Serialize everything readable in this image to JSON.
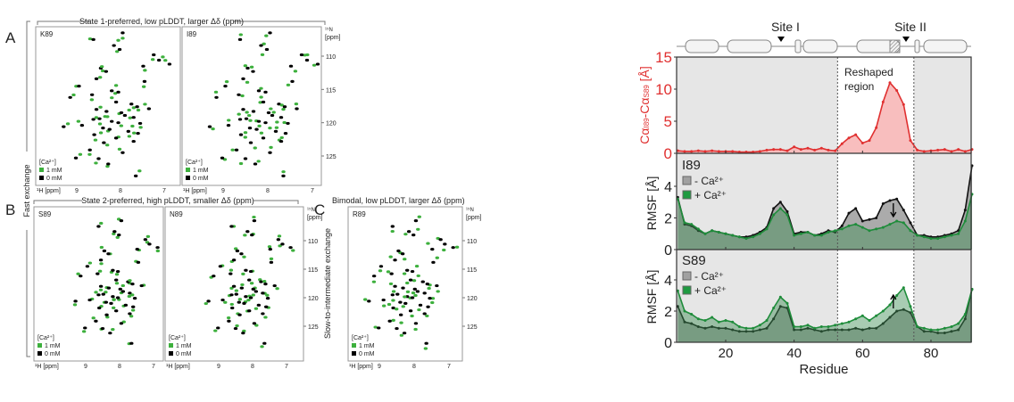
{
  "panel_labels": {
    "a": "A",
    "b": "B",
    "c": "C"
  },
  "group_titles": {
    "a": "State 1-preferred, low pLDDT, larger Δδ (ppm)",
    "b": "State 2-preferred, high pLDDT, smaller Δδ (ppm)",
    "c": "Bimodal, low pLDDT, larger Δδ (ppm)"
  },
  "side_labels": {
    "fast": "Fast exchange",
    "slow": "Slow-to-intermediate exchange"
  },
  "nmr": {
    "x_label": "¹H [ppm]",
    "y_label_top": "¹⁵N",
    "y_label_unit": "[ppm]",
    "legend_title": "[Ca²⁺]",
    "legend_1mM": "1 mM",
    "legend_0mM": "0 mM",
    "x_ticks": [
      "9",
      "8",
      "7"
    ],
    "y_ticks": [
      "110",
      "115",
      "120",
      "125"
    ],
    "colors": {
      "ca_1mM": "#3db03d",
      "ca_0mM": "#000000"
    },
    "spectra": [
      {
        "label": "K89",
        "ca_shift_scale": 1.0
      },
      {
        "label": "I89",
        "ca_shift_scale": 1.0
      },
      {
        "label": "S89",
        "ca_shift_scale": 0.8
      },
      {
        "label": "N89",
        "ca_shift_scale": 0.8
      },
      {
        "label": "R89",
        "ca_shift_scale": 1.3
      }
    ],
    "peaks_0mM": [
      [
        7.95,
        106.5
      ],
      [
        8.62,
        107.5
      ],
      [
        8.15,
        108.4
      ],
      [
        8.02,
        109.0
      ],
      [
        7.24,
        109.8
      ],
      [
        7.12,
        110.6
      ],
      [
        6.88,
        111.2
      ],
      [
        7.48,
        111.5
      ],
      [
        8.45,
        111.8
      ],
      [
        8.33,
        112.3
      ],
      [
        8.55,
        113.4
      ],
      [
        7.45,
        113.8
      ],
      [
        8.95,
        114.5
      ],
      [
        8.2,
        115.2
      ],
      [
        8.05,
        115.4
      ],
      [
        8.65,
        115.8
      ],
      [
        9.15,
        116.2
      ],
      [
        8.1,
        116.9
      ],
      [
        7.75,
        117.2
      ],
      [
        7.62,
        117.6
      ],
      [
        7.35,
        117.9
      ],
      [
        8.55,
        118.0
      ],
      [
        8.32,
        118.3
      ],
      [
        7.98,
        118.5
      ],
      [
        7.9,
        118.9
      ],
      [
        7.7,
        119.2
      ],
      [
        8.48,
        119.4
      ],
      [
        8.62,
        119.5
      ],
      [
        8.2,
        119.8
      ],
      [
        8.05,
        120.0
      ],
      [
        7.55,
        120.1
      ],
      [
        8.88,
        120.4
      ],
      [
        9.3,
        120.6
      ],
      [
        8.4,
        120.8
      ],
      [
        8.25,
        121.0
      ],
      [
        7.82,
        121.3
      ],
      [
        7.6,
        121.6
      ],
      [
        8.6,
        121.8
      ],
      [
        8.1,
        122.3
      ],
      [
        7.7,
        122.8
      ],
      [
        8.38,
        123.0
      ],
      [
        8.7,
        124.1
      ],
      [
        7.95,
        124.5
      ],
      [
        9.02,
        125.3
      ],
      [
        8.5,
        125.4
      ],
      [
        8.28,
        126.2
      ],
      [
        7.65,
        128.0
      ]
    ]
  },
  "chart_data": [
    {
      "type": "area",
      "title": "",
      "ylabel": "Cα I89 - Cα S89 [Å]",
      "ylabel_main": "Cα",
      "ylabel_sub1": "I89",
      "ylabel_mid": "-Cα",
      "ylabel_sub2": "S89",
      "ylabel_unit": " [Å]",
      "ylim": [
        0,
        15
      ],
      "y_ticks": [
        "0",
        "5",
        "10",
        "15"
      ],
      "annotation_line1": "Reshaped",
      "annotation_line2": "region",
      "color": "#e03030",
      "fill": "#f7b7b7",
      "x": [
        6,
        8,
        10,
        12,
        14,
        16,
        18,
        20,
        22,
        24,
        26,
        28,
        30,
        32,
        34,
        36,
        38,
        40,
        42,
        44,
        46,
        48,
        50,
        52,
        54,
        56,
        58,
        60,
        62,
        64,
        66,
        68,
        70,
        72,
        74,
        76,
        78,
        80,
        82,
        84,
        86,
        88,
        90,
        92
      ],
      "values": [
        0.4,
        0.3,
        0.3,
        0.4,
        0.3,
        0.4,
        0.3,
        0.3,
        0.3,
        0.2,
        0.2,
        0.2,
        0.3,
        0.5,
        0.6,
        0.6,
        0.4,
        1.0,
        0.6,
        0.8,
        0.5,
        0.8,
        0.5,
        0.4,
        1.5,
        2.4,
        2.9,
        1.6,
        2.0,
        4.0,
        8.0,
        11.0,
        9.8,
        7.6,
        2.0,
        0.5,
        0.3,
        0.4,
        0.5,
        0.6,
        0.3,
        0.6,
        0.3,
        0.6
      ]
    },
    {
      "type": "area",
      "panel_label": "I89",
      "ylabel": "RMSF [Å]",
      "ylim": [
        0,
        5.5
      ],
      "y_ticks": [
        "0",
        "2",
        "4"
      ],
      "legend": [
        "- Ca²⁺",
        "+ Ca²⁺"
      ],
      "x": [
        6,
        8,
        10,
        12,
        14,
        16,
        18,
        20,
        22,
        24,
        26,
        28,
        30,
        32,
        34,
        36,
        38,
        40,
        42,
        44,
        46,
        48,
        50,
        52,
        54,
        56,
        58,
        60,
        62,
        64,
        66,
        68,
        70,
        72,
        74,
        76,
        78,
        80,
        82,
        84,
        86,
        88,
        90,
        92
      ],
      "series": [
        {
          "name": "- Ca²⁺",
          "color": "#111111",
          "values": [
            3.3,
            1.6,
            1.5,
            1.2,
            1.0,
            1.2,
            1.1,
            1.0,
            0.9,
            0.8,
            0.8,
            0.9,
            1.1,
            1.4,
            2.6,
            3.0,
            2.4,
            1.0,
            1.1,
            1.1,
            0.9,
            1.0,
            1.2,
            1.1,
            1.5,
            2.3,
            2.6,
            1.8,
            1.9,
            2.0,
            2.9,
            3.1,
            3.2,
            2.5,
            1.7,
            0.9,
            0.9,
            0.8,
            0.8,
            0.9,
            1.0,
            1.2,
            2.5,
            5.3
          ]
        },
        {
          "name": "+ Ca²⁺",
          "color": "#1e8c3a",
          "values": [
            3.2,
            1.7,
            1.6,
            1.3,
            1.0,
            1.2,
            1.1,
            1.0,
            0.9,
            0.8,
            0.7,
            0.8,
            1.0,
            1.3,
            2.2,
            2.6,
            2.2,
            0.9,
            1.0,
            1.1,
            0.9,
            0.9,
            1.1,
            1.2,
            1.3,
            1.5,
            1.6,
            1.4,
            1.2,
            1.3,
            1.4,
            1.6,
            1.8,
            1.7,
            1.2,
            0.9,
            0.8,
            0.7,
            0.7,
            0.8,
            0.9,
            1.0,
            1.8,
            3.5
          ]
        }
      ],
      "annotation": "arrow down at residue 69"
    },
    {
      "type": "area",
      "panel_label": "S89",
      "ylabel": "RMSF [Å]",
      "xlabel": "Residue",
      "xlim": [
        5.6,
        92
      ],
      "x_ticks": [
        "20",
        "40",
        "60",
        "80"
      ],
      "ylim": [
        0,
        5.5
      ],
      "y_ticks": [
        "0",
        "2",
        "4"
      ],
      "legend": [
        "- Ca²⁺",
        "+ Ca²⁺"
      ],
      "x": [
        6,
        8,
        10,
        12,
        14,
        16,
        18,
        20,
        22,
        24,
        26,
        28,
        30,
        32,
        34,
        36,
        38,
        40,
        42,
        44,
        46,
        48,
        50,
        52,
        54,
        56,
        58,
        60,
        62,
        64,
        66,
        68,
        70,
        72,
        74,
        76,
        78,
        80,
        82,
        84,
        86,
        88,
        90,
        92
      ],
      "series": [
        {
          "name": "- Ca²⁺",
          "color": "#111111",
          "values": [
            2.3,
            1.3,
            1.2,
            1.0,
            0.9,
            1.0,
            0.9,
            0.9,
            0.8,
            0.7,
            0.7,
            0.7,
            0.8,
            0.9,
            1.5,
            2.3,
            2.2,
            0.8,
            0.8,
            0.9,
            0.8,
            0.7,
            0.8,
            0.8,
            0.8,
            0.8,
            0.9,
            0.8,
            0.9,
            0.9,
            1.2,
            1.6,
            2.0,
            2.1,
            1.9,
            1.0,
            0.7,
            0.7,
            0.6,
            0.6,
            0.7,
            0.8,
            1.5,
            3.4
          ]
        },
        {
          "name": "+ Ca²⁺",
          "color": "#1e8c3a",
          "values": [
            3.3,
            2.0,
            1.8,
            1.5,
            1.4,
            1.6,
            1.3,
            1.4,
            1.3,
            1.0,
            0.9,
            0.9,
            1.1,
            1.4,
            2.2,
            2.9,
            2.5,
            1.0,
            1.0,
            1.1,
            0.9,
            1.0,
            1.0,
            1.1,
            1.2,
            1.3,
            1.5,
            1.7,
            1.4,
            1.7,
            2.0,
            2.4,
            3.0,
            3.5,
            2.3,
            1.0,
            0.9,
            0.8,
            0.8,
            0.9,
            1.0,
            1.2,
            1.8,
            3.4
          ]
        }
      ],
      "annotation": "arrow up at residue 69"
    }
  ],
  "domain_diagram": {
    "site1": "Site I",
    "site2": "Site II",
    "reshaped_region_residues": [
      52.7,
      75
    ]
  }
}
